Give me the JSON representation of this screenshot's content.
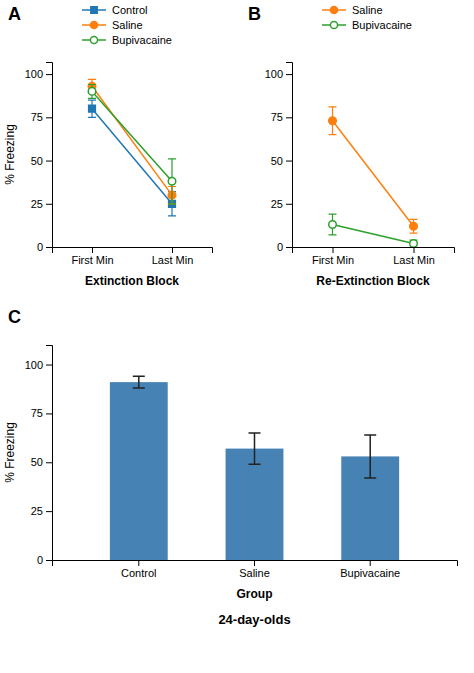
{
  "chart_data": [
    {
      "type": "line",
      "annotations": [
        "A"
      ],
      "categories": [
        "First Min",
        "Last Min"
      ],
      "xlabel": "Extinction Block",
      "ylabel": "% Freezing",
      "ylim": [
        0,
        107
      ],
      "yticks": [
        0,
        25,
        50,
        75,
        100
      ],
      "legend": "top",
      "series": [
        {
          "name": "Control",
          "marker": "square",
          "values": [
            80,
            25
          ],
          "yerr": [
            5,
            7
          ]
        },
        {
          "name": "Saline",
          "marker": "circle",
          "values": [
            93,
            30
          ],
          "yerr": [
            4,
            5
          ]
        },
        {
          "name": "Bupivacaine",
          "marker": "open-circle",
          "values": [
            90,
            38
          ],
          "yerr": [
            4,
            13
          ]
        }
      ]
    },
    {
      "type": "line",
      "annotations": [
        "B"
      ],
      "categories": [
        "First Min",
        "Last Min"
      ],
      "xlabel": "Re-Extinction Block",
      "ylim": [
        0,
        107
      ],
      "yticks": [
        0,
        25,
        50,
        75,
        100
      ],
      "legend": "top",
      "series": [
        {
          "name": "Saline",
          "marker": "circle",
          "values": [
            73,
            12
          ],
          "yerr": [
            8,
            4
          ]
        },
        {
          "name": "Bupivacaine",
          "marker": "open-circle",
          "values": [
            13,
            2
          ],
          "yerr": [
            6,
            2
          ]
        }
      ]
    },
    {
      "type": "bar",
      "annotations": [
        "C"
      ],
      "title": "24-day-olds",
      "categories": [
        "Control",
        "Saline",
        "Bupivacaine"
      ],
      "values": [
        91,
        57,
        53
      ],
      "yerr": [
        3,
        8,
        11
      ],
      "xlabel": "Group",
      "ylabel": "% Freezing",
      "ylim": [
        0,
        110
      ],
      "yticks": [
        0,
        25,
        50,
        75,
        100
      ]
    }
  ]
}
